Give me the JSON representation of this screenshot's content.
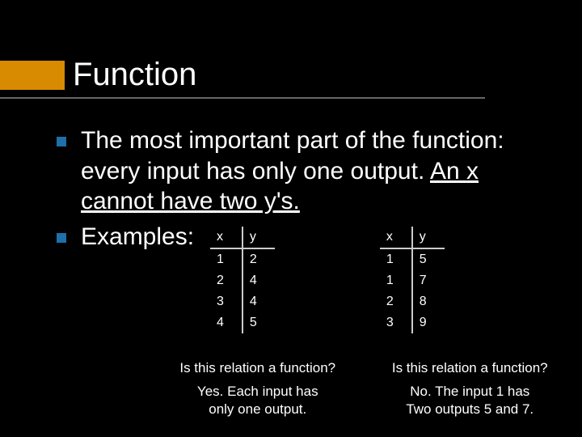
{
  "title": "Function",
  "colors": {
    "background": "#000000",
    "accent_block": "#d88a00",
    "bullet": "#1f6fa8",
    "underline_bar": "#666666",
    "text": "#ffffff",
    "table_border": "#cccccc"
  },
  "bullets": {
    "b1_part1": "The most important part of the function: every input has only one output.  ",
    "b1_underline": "An x cannot have two y's.",
    "b2": "Examples:"
  },
  "tables": {
    "left": {
      "headers": {
        "x": "x",
        "y": "y"
      },
      "rows": [
        {
          "x": "1",
          "y": "2"
        },
        {
          "x": "2",
          "y": "4"
        },
        {
          "x": "3",
          "y": "4"
        },
        {
          "x": "4",
          "y": "5"
        }
      ]
    },
    "right": {
      "headers": {
        "x": "x",
        "y": "y"
      },
      "rows": [
        {
          "x": "1",
          "y": "5"
        },
        {
          "x": "1",
          "y": "7"
        },
        {
          "x": "2",
          "y": "8"
        },
        {
          "x": "3",
          "y": "9"
        }
      ]
    }
  },
  "questions": {
    "left": {
      "q": "Is this relation a function?",
      "a1": "Yes.  Each input has",
      "a2": "only one output."
    },
    "right": {
      "q": "Is this relation a function?",
      "a1": "No.  The input 1 has",
      "a2": "Two outputs 5 and 7."
    }
  }
}
